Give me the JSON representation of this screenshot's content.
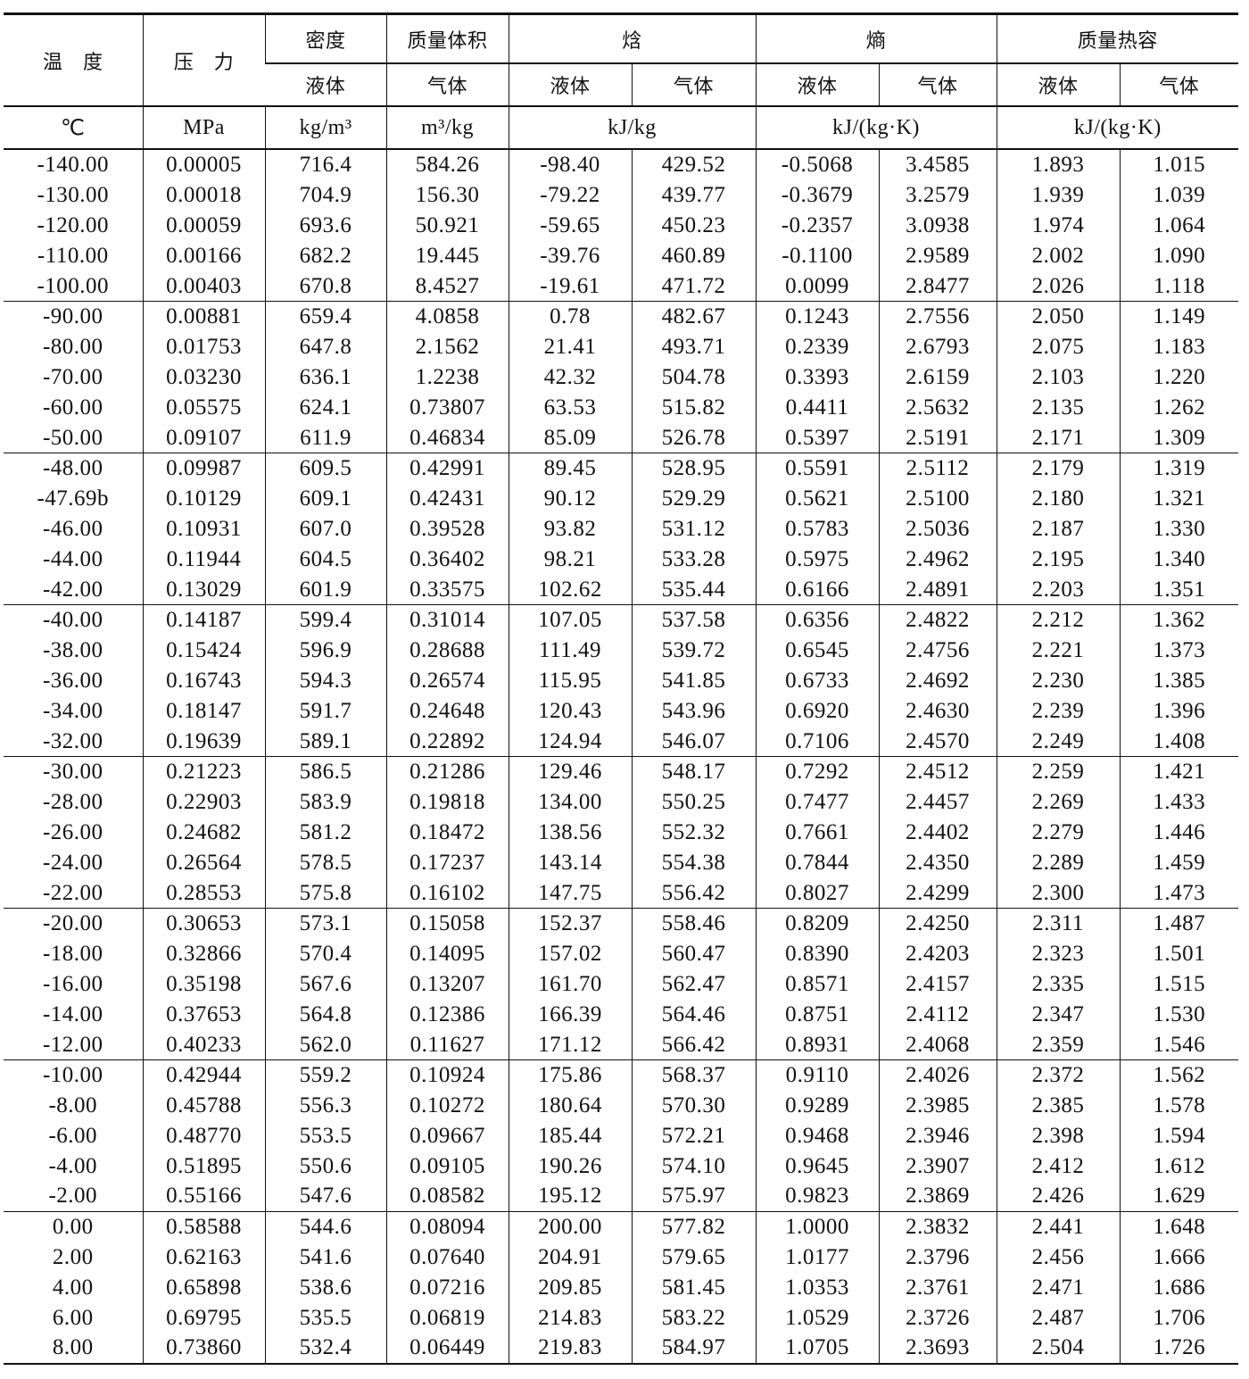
{
  "header": {
    "temperature": "温　度",
    "pressure": "压　力",
    "density": "密度",
    "specific_volume": "质量体积",
    "enthalpy": "焓",
    "entropy": "熵",
    "heat_capacity": "质量热容",
    "liquid": "液体",
    "vapor": "气体",
    "units": [
      "℃",
      "MPa",
      "kg/m³",
      "m³/kg",
      "kJ/kg",
      "kJ/(kg·K)",
      "kJ/(kg·K)"
    ]
  },
  "rows": [
    [
      "-140.00",
      "0.00005",
      "716.4",
      "584.26",
      "-98.40",
      "429.52",
      "-0.5068",
      "3.4585",
      "1.893",
      "1.015"
    ],
    [
      "-130.00",
      "0.00018",
      "704.9",
      "156.30",
      "-79.22",
      "439.77",
      "-0.3679",
      "3.2579",
      "1.939",
      "1.039"
    ],
    [
      "-120.00",
      "0.00059",
      "693.6",
      "50.921",
      "-59.65",
      "450.23",
      "-0.2357",
      "3.0938",
      "1.974",
      "1.064"
    ],
    [
      "-110.00",
      "0.00166",
      "682.2",
      "19.445",
      "-39.76",
      "460.89",
      "-0.1100",
      "2.9589",
      "2.002",
      "1.090"
    ],
    [
      "-100.00",
      "0.00403",
      "670.8",
      "8.4527",
      "-19.61",
      "471.72",
      "0.0099",
      "2.8477",
      "2.026",
      "1.118"
    ],
    [
      "-90.00",
      "0.00881",
      "659.4",
      "4.0858",
      "0.78",
      "482.67",
      "0.1243",
      "2.7556",
      "2.050",
      "1.149"
    ],
    [
      "-80.00",
      "0.01753",
      "647.8",
      "2.1562",
      "21.41",
      "493.71",
      "0.2339",
      "2.6793",
      "2.075",
      "1.183"
    ],
    [
      "-70.00",
      "0.03230",
      "636.1",
      "1.2238",
      "42.32",
      "504.78",
      "0.3393",
      "2.6159",
      "2.103",
      "1.220"
    ],
    [
      "-60.00",
      "0.05575",
      "624.1",
      "0.73807",
      "63.53",
      "515.82",
      "0.4411",
      "2.5632",
      "2.135",
      "1.262"
    ],
    [
      "-50.00",
      "0.09107",
      "611.9",
      "0.46834",
      "85.09",
      "526.78",
      "0.5397",
      "2.5191",
      "2.171",
      "1.309"
    ],
    [
      "-48.00",
      "0.09987",
      "609.5",
      "0.42991",
      "89.45",
      "528.95",
      "0.5591",
      "2.5112",
      "2.179",
      "1.319"
    ],
    [
      "-47.69b",
      "0.10129",
      "609.1",
      "0.42431",
      "90.12",
      "529.29",
      "0.5621",
      "2.5100",
      "2.180",
      "1.321"
    ],
    [
      "-46.00",
      "0.10931",
      "607.0",
      "0.39528",
      "93.82",
      "531.12",
      "0.5783",
      "2.5036",
      "2.187",
      "1.330"
    ],
    [
      "-44.00",
      "0.11944",
      "604.5",
      "0.36402",
      "98.21",
      "533.28",
      "0.5975",
      "2.4962",
      "2.195",
      "1.340"
    ],
    [
      "-42.00",
      "0.13029",
      "601.9",
      "0.33575",
      "102.62",
      "535.44",
      "0.6166",
      "2.4891",
      "2.203",
      "1.351"
    ],
    [
      "-40.00",
      "0.14187",
      "599.4",
      "0.31014",
      "107.05",
      "537.58",
      "0.6356",
      "2.4822",
      "2.212",
      "1.362"
    ],
    [
      "-38.00",
      "0.15424",
      "596.9",
      "0.28688",
      "111.49",
      "539.72",
      "0.6545",
      "2.4756",
      "2.221",
      "1.373"
    ],
    [
      "-36.00",
      "0.16743",
      "594.3",
      "0.26574",
      "115.95",
      "541.85",
      "0.6733",
      "2.4692",
      "2.230",
      "1.385"
    ],
    [
      "-34.00",
      "0.18147",
      "591.7",
      "0.24648",
      "120.43",
      "543.96",
      "0.6920",
      "2.4630",
      "2.239",
      "1.396"
    ],
    [
      "-32.00",
      "0.19639",
      "589.1",
      "0.22892",
      "124.94",
      "546.07",
      "0.7106",
      "2.4570",
      "2.249",
      "1.408"
    ],
    [
      "-30.00",
      "0.21223",
      "586.5",
      "0.21286",
      "129.46",
      "548.17",
      "0.7292",
      "2.4512",
      "2.259",
      "1.421"
    ],
    [
      "-28.00",
      "0.22903",
      "583.9",
      "0.19818",
      "134.00",
      "550.25",
      "0.7477",
      "2.4457",
      "2.269",
      "1.433"
    ],
    [
      "-26.00",
      "0.24682",
      "581.2",
      "0.18472",
      "138.56",
      "552.32",
      "0.7661",
      "2.4402",
      "2.279",
      "1.446"
    ],
    [
      "-24.00",
      "0.26564",
      "578.5",
      "0.17237",
      "143.14",
      "554.38",
      "0.7844",
      "2.4350",
      "2.289",
      "1.459"
    ],
    [
      "-22.00",
      "0.28553",
      "575.8",
      "0.16102",
      "147.75",
      "556.42",
      "0.8027",
      "2.4299",
      "2.300",
      "1.473"
    ],
    [
      "-20.00",
      "0.30653",
      "573.1",
      "0.15058",
      "152.37",
      "558.46",
      "0.8209",
      "2.4250",
      "2.311",
      "1.487"
    ],
    [
      "-18.00",
      "0.32866",
      "570.4",
      "0.14095",
      "157.02",
      "560.47",
      "0.8390",
      "2.4203",
      "2.323",
      "1.501"
    ],
    [
      "-16.00",
      "0.35198",
      "567.6",
      "0.13207",
      "161.70",
      "562.47",
      "0.8571",
      "2.4157",
      "2.335",
      "1.515"
    ],
    [
      "-14.00",
      "0.37653",
      "564.8",
      "0.12386",
      "166.39",
      "564.46",
      "0.8751",
      "2.4112",
      "2.347",
      "1.530"
    ],
    [
      "-12.00",
      "0.40233",
      "562.0",
      "0.11627",
      "171.12",
      "566.42",
      "0.8931",
      "2.4068",
      "2.359",
      "1.546"
    ],
    [
      "-10.00",
      "0.42944",
      "559.2",
      "0.10924",
      "175.86",
      "568.37",
      "0.9110",
      "2.4026",
      "2.372",
      "1.562"
    ],
    [
      "-8.00",
      "0.45788",
      "556.3",
      "0.10272",
      "180.64",
      "570.30",
      "0.9289",
      "2.3985",
      "2.385",
      "1.578"
    ],
    [
      "-6.00",
      "0.48770",
      "553.5",
      "0.09667",
      "185.44",
      "572.21",
      "0.9468",
      "2.3946",
      "2.398",
      "1.594"
    ],
    [
      "-4.00",
      "0.51895",
      "550.6",
      "0.09105",
      "190.26",
      "574.10",
      "0.9645",
      "2.3907",
      "2.412",
      "1.612"
    ],
    [
      "-2.00",
      "0.55166",
      "547.6",
      "0.08582",
      "195.12",
      "575.97",
      "0.9823",
      "2.3869",
      "2.426",
      "1.629"
    ],
    [
      "0.00",
      "0.58588",
      "544.6",
      "0.08094",
      "200.00",
      "577.82",
      "1.0000",
      "2.3832",
      "2.441",
      "1.648"
    ],
    [
      "2.00",
      "0.62163",
      "541.6",
      "0.07640",
      "204.91",
      "579.65",
      "1.0177",
      "2.3796",
      "2.456",
      "1.666"
    ],
    [
      "4.00",
      "0.65898",
      "538.6",
      "0.07216",
      "209.85",
      "581.45",
      "1.0353",
      "2.3761",
      "2.471",
      "1.686"
    ],
    [
      "6.00",
      "0.69795",
      "535.5",
      "0.06819",
      "214.83",
      "583.22",
      "1.0529",
      "2.3726",
      "2.487",
      "1.706"
    ],
    [
      "8.00",
      "0.73860",
      "532.4",
      "0.06449",
      "219.83",
      "584.97",
      "1.0705",
      "2.3693",
      "2.504",
      "1.726"
    ]
  ]
}
